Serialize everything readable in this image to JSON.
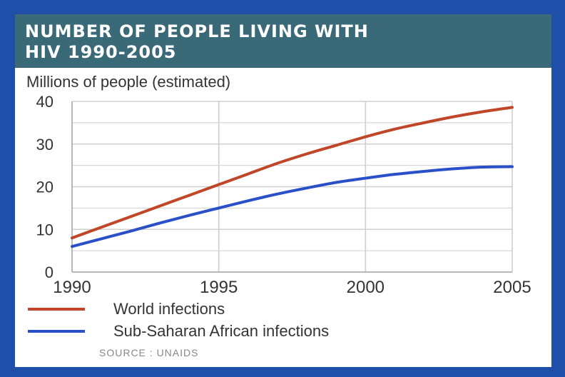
{
  "chart_data": {
    "type": "line",
    "title": "NUMBER OF PEOPLE LIVING WITH HIV 1990-2005",
    "title_lines": [
      "NUMBER OF PEOPLE LIVING WITH",
      "HIV 1990-2005"
    ],
    "ylabel": "Millions of people (estimated)",
    "xlabel": "",
    "x": [
      1990,
      1991,
      1992,
      1993,
      1994,
      1995,
      1996,
      1997,
      1998,
      1999,
      2000,
      2001,
      2002,
      2003,
      2004,
      2005
    ],
    "series": [
      {
        "name": "World infections",
        "color": "#c0462a",
        "values": [
          8,
          10.5,
          13,
          15.5,
          18,
          20.5,
          23,
          25.5,
          27.7,
          29.7,
          31.7,
          33.5,
          35,
          36.4,
          37.6,
          38.6
        ]
      },
      {
        "name": "Sub-Saharan African infections",
        "color": "#2a50c8",
        "values": [
          6,
          7.8,
          9.6,
          11.5,
          13.3,
          15,
          16.7,
          18.3,
          19.7,
          21,
          22,
          22.9,
          23.6,
          24.2,
          24.6,
          24.7
        ]
      }
    ],
    "xticks": [
      1990,
      1995,
      2000,
      2005
    ],
    "yticks": [
      0,
      10,
      20,
      30,
      40
    ],
    "xlim": [
      1990,
      2005
    ],
    "ylim": [
      0,
      40
    ],
    "grid": true,
    "legend_position": "bottom",
    "source": "SOURCE : UNAIDS"
  },
  "colors": {
    "page_background": "#1f4fa8",
    "title_bar": "#3a6a78",
    "grid": "#cfcfcf",
    "axis_text": "#333333"
  }
}
